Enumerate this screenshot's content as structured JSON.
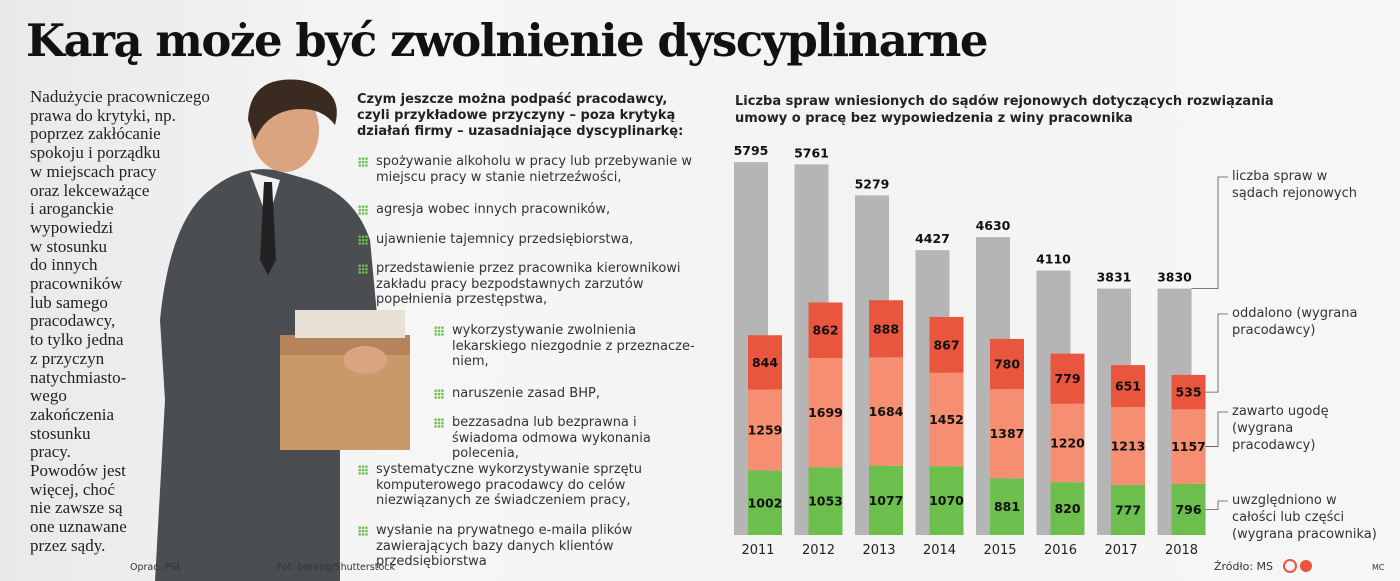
{
  "title": "Karą może być zwolnienie dyscyplinarne",
  "intro_lines": [
    "Nadużycie pracowniczego",
    "prawa do krytyki, np.",
    "poprzez zakłócanie",
    "spokoju i porządku",
    "w miejscach pracy",
    "oraz lekceważące",
    "i aroganckie",
    "wypowiedzi",
    "w stosunku",
    "do innych",
    "pracowników",
    "lub samego",
    "pracodawcy,",
    "to tylko jedna",
    "z przyczyn",
    "natychmiasto-",
    "wego",
    "zakończenia",
    "stosunku",
    "pracy.",
    "Powodów jest",
    "więcej, choć",
    "nie zawsze są",
    "one uznawane",
    "przez sądy."
  ],
  "list_heading": "Czym jeszcze można podpaść pracodawcy, czyli przykładowe przyczyny – poza krytyką działań firmy – uzasadniające dyscyplinarkę:",
  "list": [
    {
      "text": "spożywanie alkoholu w pracy lub przebywanie w miejscu pracy w stanie nietrzeźwości,"
    },
    {
      "text": "agresja wobec innych pracowników,"
    },
    {
      "text": "ujawnienie tajemnicy przedsiębiorstwa,"
    },
    {
      "text": "przedstawienie przez pracownika kierownikowi zakładu pracy bezpodstawnych zarzutów popełnienia przestępstwa,"
    },
    {
      "text": "wykorzystywanie zwolnienia lekarskiego niezgodnie z przeznacze-niem,",
      "sub": true
    },
    {
      "text": "naruszenie zasad BHP,",
      "sub": true
    },
    {
      "text": "bezzasadna lub bezprawna i świadoma odmowa wykonania polecenia,",
      "sub": true
    },
    {
      "text": "systematyczne wykorzystywanie sprzętu komputerowego pracodawcy do celów niezwiązanych ze świadczeniem pracy,"
    },
    {
      "text": "wysłanie na prywatnego e-maila plików zawierających bazy danych klientów przedsiębiorstwa"
    }
  ],
  "credit_author": "Oprac. PSŁ",
  "credit_photo": "Fot. baranq/Shutterstock",
  "chart_data": {
    "type": "bar",
    "title": "Liczba spraw wniesionych do sądów rejonowych dotyczących rozwiązania umowy o pracę bez wypowiedzenia z winy pracownika",
    "categories": [
      "2011",
      "2012",
      "2013",
      "2014",
      "2015",
      "2016",
      "2017",
      "2018"
    ],
    "ylim": [
      0,
      6000
    ],
    "series": [
      {
        "name": "liczba spraw w sądach rejonowych",
        "color": "#b5b5b5",
        "values": [
          5795,
          5761,
          5279,
          4427,
          4630,
          4110,
          3831,
          3830
        ]
      },
      {
        "name": "uwzględniono w całości lub części (wygrana pracownika)",
        "color": "#6cbf4c",
        "values": [
          1002,
          1053,
          1077,
          1070,
          881,
          820,
          777,
          796
        ]
      },
      {
        "name": "zawarto ugodę (wygrana pracodawcy)",
        "color": "#f68f71",
        "values": [
          1259,
          1699,
          1684,
          1452,
          1387,
          1220,
          1213,
          1157
        ]
      },
      {
        "name": "oddalono (wygrana pracodawcy)",
        "color": "#e9553d",
        "values": [
          844,
          862,
          888,
          867,
          780,
          779,
          651,
          535
        ]
      }
    ],
    "source": "Źródło: MS",
    "signature": "MC"
  }
}
